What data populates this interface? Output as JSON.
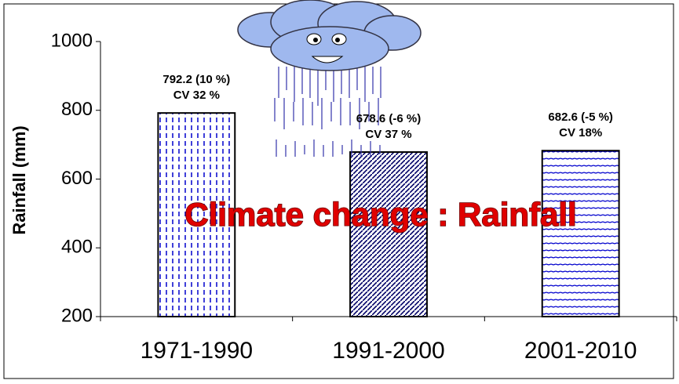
{
  "chart_data": {
    "type": "bar",
    "title": "Climate change : Rainfall",
    "ylabel": "Rainfall (mm)",
    "categories": [
      "1971-1990",
      "1991-2000",
      "2001-2010"
    ],
    "values": [
      792.2,
      678.6,
      682.6
    ],
    "value_labels": [
      "792.2 (10 %)",
      "678.6 (-6 %)",
      "682.6 (-5 %)"
    ],
    "cv_labels": [
      "CV 32 %",
      "CV 37 %",
      "CV 18%"
    ],
    "color": "#0000cc",
    "ylim": [
      200,
      1000
    ],
    "yticks": [
      200,
      400,
      600,
      800,
      1000
    ],
    "grid": false
  }
}
